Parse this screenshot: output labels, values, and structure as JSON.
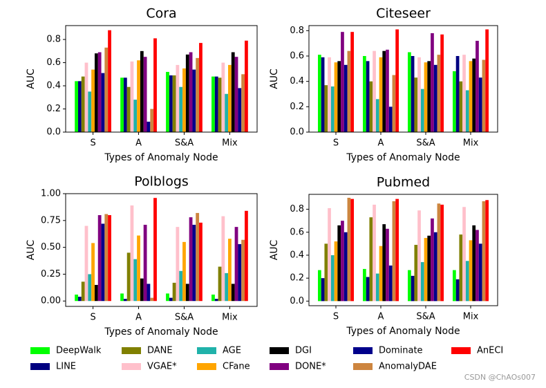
{
  "chart_data": [
    {
      "type": "bar",
      "title": "Cora",
      "xlabel": "Types of Anomaly Node",
      "ylabel": "AUC",
      "categories": [
        "S",
        "A",
        "S&A",
        "Mix"
      ],
      "ylim": [
        0,
        0.92
      ],
      "yticks": [
        {
          "value": 0,
          "label": "0.0"
        },
        {
          "value": 0.2,
          "label": "0.2"
        },
        {
          "value": 0.4,
          "label": "0.4"
        },
        {
          "value": 0.6,
          "label": "0.6"
        },
        {
          "value": 0.8,
          "label": "0.8"
        }
      ],
      "series": [
        {
          "name": "DeepWalk",
          "color": "#00ff00",
          "values": [
            0.44,
            0.47,
            0.52,
            0.48
          ]
        },
        {
          "name": "LINE",
          "color": "#000080",
          "values": [
            0.44,
            0.47,
            0.49,
            0.48
          ]
        },
        {
          "name": "DANE",
          "color": "#808000",
          "values": [
            0.48,
            0.39,
            0.49,
            0.47
          ]
        },
        {
          "name": "VGAE*",
          "color": "#ffc0cb",
          "values": [
            0.6,
            0.61,
            0.58,
            0.6
          ]
        },
        {
          "name": "AGE",
          "color": "#20b2aa",
          "values": [
            0.35,
            0.28,
            0.39,
            0.33
          ]
        },
        {
          "name": "CFane",
          "color": "#ffa500",
          "values": [
            0.54,
            0.62,
            0.55,
            0.58
          ]
        },
        {
          "name": "DGI",
          "color": "#000000",
          "values": [
            0.68,
            0.7,
            0.67,
            0.69
          ]
        },
        {
          "name": "DONE*",
          "color": "#800080",
          "values": [
            0.69,
            0.65,
            0.69,
            0.65
          ]
        },
        {
          "name": "Dominate",
          "color": "#00008b",
          "values": [
            0.51,
            0.09,
            0.54,
            0.38
          ]
        },
        {
          "name": "AnomalyDAE",
          "color": "#cd853f",
          "values": [
            0.73,
            0.2,
            0.64,
            0.5
          ]
        },
        {
          "name": "AnECI",
          "color": "#ff0000",
          "values": [
            0.88,
            0.81,
            0.77,
            0.79
          ]
        }
      ]
    },
    {
      "type": "bar",
      "title": "Citeseer",
      "xlabel": "Types of Anomaly Node",
      "ylabel": "AUC",
      "categories": [
        "S",
        "A",
        "S&A",
        "Mix"
      ],
      "ylim": [
        0,
        0.84
      ],
      "yticks": [
        {
          "value": 0,
          "label": "0.0"
        },
        {
          "value": 0.2,
          "label": "0.2"
        },
        {
          "value": 0.4,
          "label": "0.4"
        },
        {
          "value": 0.6,
          "label": "0.6"
        },
        {
          "value": 0.8,
          "label": "0.8"
        }
      ],
      "series": [
        {
          "name": "DeepWalk",
          "color": "#00ff00",
          "values": [
            0.61,
            0.6,
            0.63,
            0.48
          ]
        },
        {
          "name": "LINE",
          "color": "#000080",
          "values": [
            0.59,
            0.56,
            0.6,
            0.6
          ]
        },
        {
          "name": "DANE",
          "color": "#808000",
          "values": [
            0.37,
            0.4,
            0.43,
            0.4
          ]
        },
        {
          "name": "VGAE*",
          "color": "#ffc0cb",
          "values": [
            0.59,
            0.64,
            0.59,
            0.61
          ]
        },
        {
          "name": "AGE",
          "color": "#20b2aa",
          "values": [
            0.36,
            0.26,
            0.34,
            0.33
          ]
        },
        {
          "name": "CFane",
          "color": "#ffa500",
          "values": [
            0.55,
            0.59,
            0.55,
            0.56
          ]
        },
        {
          "name": "DGI",
          "color": "#000000",
          "values": [
            0.56,
            0.64,
            0.56,
            0.58
          ]
        },
        {
          "name": "DONE*",
          "color": "#800080",
          "values": [
            0.79,
            0.65,
            0.78,
            0.72
          ]
        },
        {
          "name": "Dominate",
          "color": "#00008b",
          "values": [
            0.53,
            0.2,
            0.53,
            0.43
          ]
        },
        {
          "name": "AnomalyDAE",
          "color": "#cd853f",
          "values": [
            0.64,
            0.45,
            0.61,
            0.57
          ]
        },
        {
          "name": "AnECI",
          "color": "#ff0000",
          "values": [
            0.79,
            0.81,
            0.77,
            0.81
          ]
        }
      ]
    },
    {
      "type": "bar",
      "title": "Polblogs",
      "xlabel": "Types of Anomaly Node",
      "ylabel": "AUC",
      "categories": [
        "S",
        "A",
        "S&A",
        "Mix"
      ],
      "ylim": [
        -0.05,
        1.0
      ],
      "yticks": [
        {
          "value": 0,
          "label": "0.00"
        },
        {
          "value": 0.25,
          "label": "0.25"
        },
        {
          "value": 0.5,
          "label": "0.50"
        },
        {
          "value": 0.75,
          "label": "0.75"
        },
        {
          "value": 1,
          "label": "1.00"
        }
      ],
      "series": [
        {
          "name": "DeepWalk",
          "color": "#00ff00",
          "values": [
            0.06,
            0.07,
            0.07,
            0.06
          ]
        },
        {
          "name": "LINE",
          "color": "#000080",
          "values": [
            0.04,
            0.02,
            0.03,
            0.02
          ]
        },
        {
          "name": "DANE",
          "color": "#808000",
          "values": [
            0.18,
            0.45,
            0.17,
            0.32
          ]
        },
        {
          "name": "VGAE*",
          "color": "#ffc0cb",
          "values": [
            0.7,
            0.89,
            0.69,
            0.79
          ]
        },
        {
          "name": "AGE",
          "color": "#20b2aa",
          "values": [
            0.25,
            0.39,
            0.28,
            0.26
          ]
        },
        {
          "name": "CFane",
          "color": "#ffa500",
          "values": [
            0.54,
            0.61,
            0.55,
            0.58
          ]
        },
        {
          "name": "DGI",
          "color": "#000000",
          "values": [
            0.15,
            0.21,
            0.16,
            0.16
          ]
        },
        {
          "name": "DONE*",
          "color": "#800080",
          "values": [
            0.8,
            0.71,
            0.78,
            0.69
          ]
        },
        {
          "name": "Dominate",
          "color": "#00008b",
          "values": [
            0.72,
            0.16,
            0.71,
            0.53
          ]
        },
        {
          "name": "AnomalyDAE",
          "color": "#cd853f",
          "values": [
            0.81,
            0.03,
            0.82,
            0.57
          ]
        },
        {
          "name": "AnECI",
          "color": "#ff0000",
          "values": [
            0.8,
            0.96,
            0.73,
            0.84
          ]
        }
      ]
    },
    {
      "type": "bar",
      "title": "Pubmed",
      "xlabel": "Types of Anomaly Node",
      "ylabel": "AUC",
      "categories": [
        "S",
        "A",
        "S&A",
        "Mix"
      ],
      "ylim": [
        -0.04,
        0.93
      ],
      "yticks": [
        {
          "value": 0,
          "label": "0.0"
        },
        {
          "value": 0.2,
          "label": "0.2"
        },
        {
          "value": 0.4,
          "label": "0.4"
        },
        {
          "value": 0.6,
          "label": "0.6"
        },
        {
          "value": 0.8,
          "label": "0.8"
        }
      ],
      "series": [
        {
          "name": "DeepWalk",
          "color": "#00ff00",
          "values": [
            0.27,
            0.28,
            0.27,
            0.27
          ]
        },
        {
          "name": "LINE",
          "color": "#000080",
          "values": [
            0.2,
            0.21,
            0.22,
            0.19
          ]
        },
        {
          "name": "DANE",
          "color": "#808000",
          "values": [
            0.5,
            0.73,
            0.49,
            0.58
          ]
        },
        {
          "name": "VGAE*",
          "color": "#ffc0cb",
          "values": [
            0.81,
            0.84,
            0.79,
            0.82
          ]
        },
        {
          "name": "AGE",
          "color": "#20b2aa",
          "values": [
            0.4,
            0.24,
            0.34,
            0.35
          ]
        },
        {
          "name": "CFane",
          "color": "#ffa500",
          "values": [
            0.52,
            0.48,
            0.55,
            0.53
          ]
        },
        {
          "name": "DGI",
          "color": "#000000",
          "values": [
            0.66,
            0.67,
            0.57,
            0.66
          ]
        },
        {
          "name": "DONE*",
          "color": "#800080",
          "values": [
            0.7,
            0.63,
            0.72,
            0.62
          ]
        },
        {
          "name": "Dominate",
          "color": "#00008b",
          "values": [
            0.6,
            0.31,
            0.6,
            0.5
          ]
        },
        {
          "name": "AnomalyDAE",
          "color": "#cd853f",
          "values": [
            0.9,
            0.87,
            0.85,
            0.87
          ]
        },
        {
          "name": "AnECI",
          "color": "#ff0000",
          "values": [
            0.89,
            0.89,
            0.84,
            0.88
          ]
        }
      ]
    }
  ],
  "watermark": "CSDN @ChAOs007"
}
